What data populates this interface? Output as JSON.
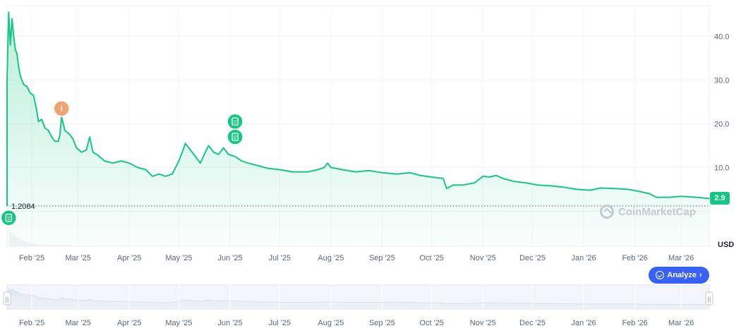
{
  "chart_data": {
    "type": "area",
    "title": "",
    "xlabel": "",
    "ylabel": "",
    "unit": "USD",
    "y_ticks": [
      "10.0",
      "20.0",
      "30.0",
      "40.0"
    ],
    "ylim": [
      -8,
      47
    ],
    "x_ticks": [
      {
        "label": "Feb '25",
        "date": "2025-02-01"
      },
      {
        "label": "Mar '25",
        "date": "2025-03-01"
      },
      {
        "label": "Apr '25",
        "date": "2025-04-01"
      },
      {
        "label": "May '25",
        "date": "2025-05-01"
      },
      {
        "label": "Jun '25",
        "date": "2025-06-01"
      },
      {
        "label": "Jul '25",
        "date": "2025-07-01"
      },
      {
        "label": "Aug '25",
        "date": "2025-08-01"
      },
      {
        "label": "Sep '25",
        "date": "2025-09-01"
      },
      {
        "label": "Oct '25",
        "date": "2025-10-01"
      },
      {
        "label": "Nov '25",
        "date": "2025-11-01"
      },
      {
        "label": "Dec '25",
        "date": "2025-12-01"
      },
      {
        "label": "Jan '26",
        "date": "2026-01-01"
      },
      {
        "label": "Feb '26",
        "date": "2026-02-01"
      },
      {
        "label": "Mar '26",
        "date": "2026-03-01"
      }
    ],
    "xlim": [
      "2025-01-17",
      "2026-03-18"
    ],
    "current_price": "2.9",
    "min_price_label": "1.2084",
    "min_price_value": 1.2084,
    "grid": true,
    "series": [
      {
        "color": "#16c784",
        "points": [
          [
            "2025-01-17",
            1.2
          ],
          [
            "2025-01-17",
            30
          ],
          [
            "2025-01-18",
            45.5
          ],
          [
            "2025-01-19",
            38
          ],
          [
            "2025-01-20",
            44
          ],
          [
            "2025-01-21",
            40
          ],
          [
            "2025-01-22",
            37
          ],
          [
            "2025-01-23",
            36
          ],
          [
            "2025-01-24",
            33
          ],
          [
            "2025-01-25",
            31
          ],
          [
            "2025-01-27",
            29
          ],
          [
            "2025-01-29",
            28.5
          ],
          [
            "2025-01-31",
            27
          ],
          [
            "2025-02-02",
            26.5
          ],
          [
            "2025-02-04",
            23
          ],
          [
            "2025-02-05",
            20.5
          ],
          [
            "2025-02-07",
            21
          ],
          [
            "2025-02-09",
            19
          ],
          [
            "2025-02-11",
            18.5
          ],
          [
            "2025-02-13",
            17
          ],
          [
            "2025-02-15",
            16
          ],
          [
            "2025-02-17",
            16
          ],
          [
            "2025-02-18",
            17.5
          ],
          [
            "2025-02-19",
            21.5
          ],
          [
            "2025-02-21",
            18.5
          ],
          [
            "2025-02-24",
            17.5
          ],
          [
            "2025-02-26",
            16.5
          ],
          [
            "2025-02-28",
            14.5
          ],
          [
            "2025-03-03",
            13.5
          ],
          [
            "2025-03-06",
            14.0
          ],
          [
            "2025-03-08",
            17.0
          ],
          [
            "2025-03-10",
            13.5
          ],
          [
            "2025-03-13",
            12.8
          ],
          [
            "2025-03-17",
            11.5
          ],
          [
            "2025-03-22",
            11.0
          ],
          [
            "2025-03-27",
            11.5
          ],
          [
            "2025-04-01",
            11.0
          ],
          [
            "2025-04-06",
            10.0
          ],
          [
            "2025-04-11",
            9.5
          ],
          [
            "2025-04-15",
            8.0
          ],
          [
            "2025-04-19",
            8.5
          ],
          [
            "2025-04-23",
            8.0
          ],
          [
            "2025-04-27",
            8.5
          ],
          [
            "2025-04-29",
            10.0
          ],
          [
            "2025-05-01",
            11.5
          ],
          [
            "2025-05-03",
            13.5
          ],
          [
            "2025-05-05",
            15.5
          ],
          [
            "2025-05-08",
            14.0
          ],
          [
            "2025-05-11",
            12.5
          ],
          [
            "2025-05-14",
            11.0
          ],
          [
            "2025-05-17",
            13.5
          ],
          [
            "2025-05-19",
            15.0
          ],
          [
            "2025-05-22",
            13.5
          ],
          [
            "2025-05-25",
            13.0
          ],
          [
            "2025-05-28",
            14.5
          ],
          [
            "2025-05-31",
            13.0
          ],
          [
            "2025-06-04",
            12.5
          ],
          [
            "2025-06-08",
            11.5
          ],
          [
            "2025-06-12",
            11.0
          ],
          [
            "2025-06-17",
            10.5
          ],
          [
            "2025-06-24",
            9.8
          ],
          [
            "2025-07-01",
            9.5
          ],
          [
            "2025-07-09",
            9.0
          ],
          [
            "2025-07-18",
            9.0
          ],
          [
            "2025-07-24",
            9.5
          ],
          [
            "2025-07-28",
            10.0
          ],
          [
            "2025-07-30",
            11.0
          ],
          [
            "2025-08-01",
            10.0
          ],
          [
            "2025-08-08",
            9.5
          ],
          [
            "2025-08-16",
            9.0
          ],
          [
            "2025-08-24",
            9.3
          ],
          [
            "2025-09-01",
            8.8
          ],
          [
            "2025-09-10",
            8.5
          ],
          [
            "2025-09-18",
            8.8
          ],
          [
            "2025-09-24",
            8.2
          ],
          [
            "2025-10-01",
            7.8
          ],
          [
            "2025-10-08",
            7.5
          ],
          [
            "2025-10-10",
            5.2
          ],
          [
            "2025-10-14",
            6.0
          ],
          [
            "2025-10-20",
            6.0
          ],
          [
            "2025-10-27",
            6.5
          ],
          [
            "2025-11-01",
            8.0
          ],
          [
            "2025-11-05",
            7.8
          ],
          [
            "2025-11-09",
            8.2
          ],
          [
            "2025-11-13",
            7.5
          ],
          [
            "2025-11-20",
            6.8
          ],
          [
            "2025-11-27",
            6.5
          ],
          [
            "2025-12-04",
            6.0
          ],
          [
            "2025-12-12",
            5.8
          ],
          [
            "2025-12-20",
            5.5
          ],
          [
            "2025-12-28",
            5.0
          ],
          [
            "2026-01-05",
            4.8
          ],
          [
            "2026-01-11",
            5.3
          ],
          [
            "2026-01-20",
            5.2
          ],
          [
            "2026-01-28",
            5.0
          ],
          [
            "2026-02-04",
            4.5
          ],
          [
            "2026-02-10",
            4.0
          ],
          [
            "2026-02-14",
            3.2
          ],
          [
            "2026-02-22",
            3.2
          ],
          [
            "2026-03-01",
            3.4
          ],
          [
            "2026-03-10",
            3.2
          ],
          [
            "2026-03-18",
            2.9
          ]
        ]
      }
    ],
    "annotations": [
      {
        "kind": "event",
        "symbol": "i",
        "date": "2025-02-19",
        "value": 23.5,
        "color": "#f0a474"
      },
      {
        "kind": "news",
        "date": "2025-06-04",
        "value": 20.5,
        "color": "#16c784"
      },
      {
        "kind": "news",
        "date": "2025-06-04",
        "value": 17.0,
        "color": "#16c784"
      },
      {
        "kind": "news",
        "date": "2025-01-18",
        "value": -1.5,
        "color": "#16c784"
      }
    ]
  },
  "controls": {
    "analyze_label": "Analyze",
    "analyze_chevron": "›",
    "brush_handle_glyph": "||"
  },
  "watermark": {
    "text": "CoinMarketCap"
  }
}
